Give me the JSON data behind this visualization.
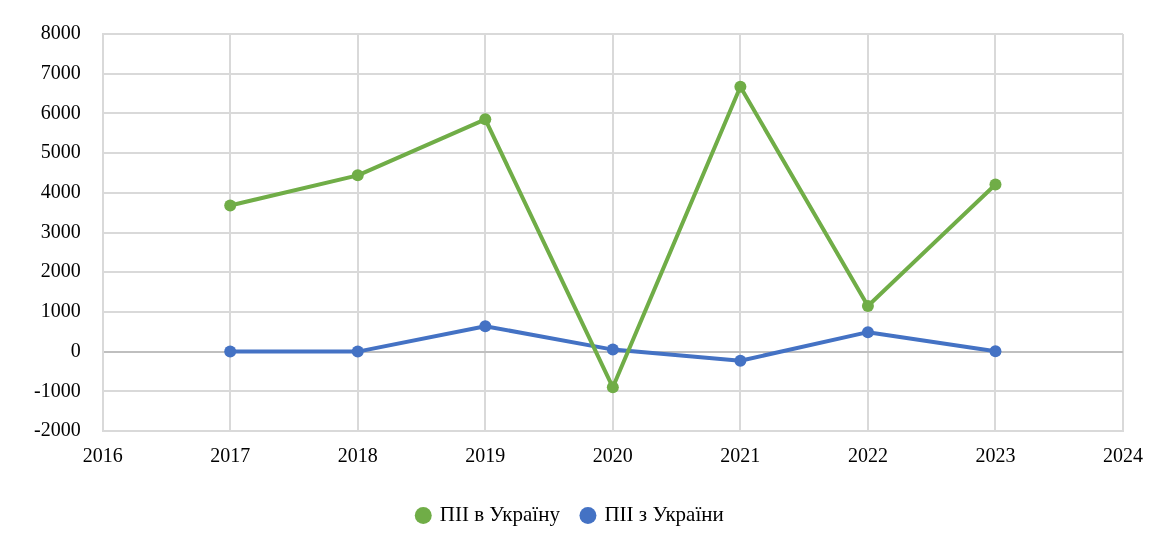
{
  "chart_data": {
    "type": "line",
    "x": [
      2017,
      2018,
      2019,
      2020,
      2021,
      2022,
      2023
    ],
    "series": [
      {
        "name": "ПІІ в Україну",
        "color": "#70ad47",
        "values": [
          3680,
          4440,
          5850,
          -900,
          6670,
          1150,
          4210
        ]
      },
      {
        "name": "ПІІ з України",
        "color": "#4472c4",
        "values": [
          0,
          0,
          640,
          50,
          -230,
          490,
          10
        ]
      }
    ],
    "xlim": [
      2016,
      2024
    ],
    "xticks": [
      2016,
      2017,
      2018,
      2019,
      2020,
      2021,
      2022,
      2023,
      2024
    ],
    "ylim": [
      -2000,
      8000
    ],
    "yticks": [
      -2000,
      -1000,
      0,
      1000,
      2000,
      3000,
      4000,
      5000,
      6000,
      7000,
      8000
    ],
    "grid": true,
    "legend": "bottom",
    "marker": "circle",
    "line_style": "solid"
  }
}
